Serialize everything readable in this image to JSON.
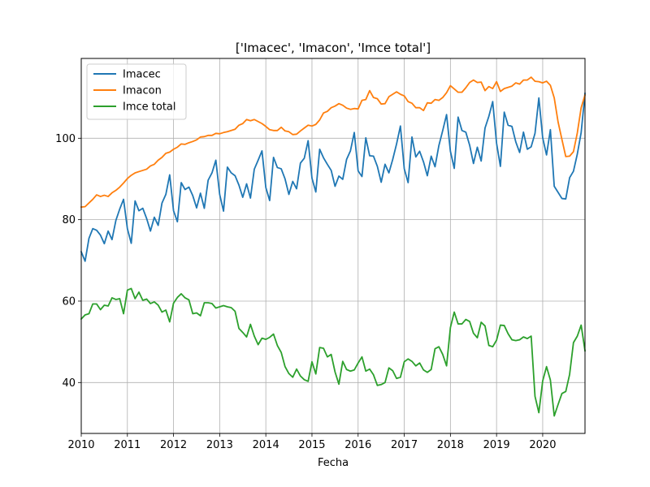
{
  "chart_data": {
    "type": "line",
    "title": "['Imacec', 'Imacon', 'Imce total']",
    "xlabel": "Fecha",
    "ylabel": "",
    "x_start": "2010-01",
    "x_end": "2020-12",
    "x_tick_labels": [
      "2010",
      "2011",
      "2012",
      "2013",
      "2014",
      "2015",
      "2016",
      "2017",
      "2018",
      "2019",
      "2020"
    ],
    "y_ticks": [
      40,
      60,
      80,
      100
    ],
    "xlim": [
      "2010-01",
      "2020-12"
    ],
    "ylim": [
      27.5,
      119.6
    ],
    "grid": true,
    "legend_position": "upper-left",
    "series": [
      {
        "name": "Imacec",
        "color": "#1f77b4",
        "values": [
          72.1,
          69.8,
          75.4,
          77.8,
          77.4,
          76.2,
          74.1,
          77.2,
          75.1,
          79.8,
          82.6,
          85.0,
          77.8,
          74.2,
          84.6,
          82.2,
          82.8,
          80.3,
          77.2,
          80.6,
          78.6,
          84.1,
          86.2,
          91.0,
          82.2,
          79.5,
          89.1,
          87.4,
          88.0,
          85.9,
          82.9,
          86.5,
          82.8,
          89.7,
          91.5,
          94.6,
          86.2,
          82.1,
          92.9,
          91.5,
          90.8,
          88.5,
          85.5,
          88.8,
          85.3,
          92.4,
          94.6,
          96.9,
          87.9,
          84.7,
          95.3,
          92.8,
          92.5,
          90.0,
          86.2,
          89.4,
          87.6,
          93.9,
          95.1,
          99.4,
          90.2,
          86.8,
          97.3,
          95.2,
          93.6,
          92.1,
          88.2,
          90.7,
          89.9,
          94.8,
          96.9,
          101.4,
          92.0,
          90.6,
          100.1,
          95.7,
          95.6,
          93.1,
          89.2,
          93.6,
          91.5,
          94.8,
          98.6,
          103.0,
          92.5,
          89.1,
          100.3,
          95.4,
          96.8,
          94.2,
          90.8,
          95.6,
          93.0,
          98.2,
          101.9,
          105.8,
          96.8,
          92.6,
          105.2,
          101.9,
          101.5,
          98.3,
          93.8,
          97.8,
          94.4,
          102.5,
          105.4,
          109.0,
          98.8,
          93.1,
          106.4,
          103.2,
          102.9,
          99.1,
          96.5,
          101.5,
          97.3,
          97.9,
          101.2,
          109.9,
          100.1,
          95.9,
          102.1,
          88.2,
          86.7,
          85.2,
          85.1,
          90.3,
          91.9,
          96.1,
          101.4,
          111.0
        ]
      },
      {
        "name": "Imacon",
        "color": "#ff7f0e",
        "values": [
          83.1,
          83.2,
          84.1,
          85.0,
          86.1,
          85.7,
          86.0,
          85.7,
          86.6,
          87.2,
          88.0,
          89.0,
          90.1,
          90.9,
          91.5,
          91.8,
          92.1,
          92.4,
          93.2,
          93.6,
          94.6,
          95.3,
          96.3,
          96.6,
          97.3,
          97.8,
          98.6,
          98.5,
          98.9,
          99.2,
          99.6,
          100.3,
          100.4,
          100.7,
          100.7,
          101.2,
          101.1,
          101.4,
          101.6,
          101.9,
          102.2,
          103.2,
          103.6,
          104.6,
          104.3,
          104.6,
          104.1,
          103.6,
          102.9,
          102.1,
          101.9,
          101.9,
          102.7,
          101.8,
          101.6,
          100.9,
          101.0,
          101.8,
          102.5,
          103.2,
          103.0,
          103.4,
          104.5,
          106.2,
          106.6,
          107.5,
          107.9,
          108.5,
          108.1,
          107.4,
          107.1,
          107.3,
          107.2,
          109.3,
          109.5,
          111.7,
          110.0,
          109.7,
          108.4,
          108.5,
          110.2,
          110.8,
          111.4,
          110.8,
          110.4,
          109.0,
          108.6,
          107.5,
          107.5,
          106.8,
          108.7,
          108.6,
          109.5,
          109.3,
          110.0,
          111.2,
          112.9,
          112.1,
          111.3,
          111.3,
          112.4,
          113.7,
          114.3,
          113.7,
          113.8,
          111.7,
          112.7,
          112.2,
          113.9,
          111.5,
          112.2,
          112.5,
          112.8,
          113.6,
          113.3,
          114.3,
          114.3,
          115.0,
          114.0,
          113.9,
          113.6,
          114.0,
          113.0,
          109.9,
          104.0,
          99.7,
          95.5,
          95.6,
          96.7,
          101.3,
          107.5,
          110.6
        ]
      },
      {
        "name": "Imce total",
        "color": "#2ca02c",
        "values": [
          55.6,
          56.6,
          56.9,
          59.3,
          59.3,
          57.9,
          59.0,
          58.8,
          60.8,
          60.4,
          60.6,
          56.9,
          62.7,
          63.1,
          60.6,
          62.2,
          60.2,
          60.5,
          59.4,
          59.8,
          59.0,
          57.3,
          57.8,
          54.9,
          59.5,
          60.9,
          61.8,
          60.8,
          60.3,
          56.9,
          57.1,
          56.4,
          59.6,
          59.6,
          59.4,
          58.3,
          58.6,
          58.9,
          58.6,
          58.4,
          57.5,
          53.3,
          52.3,
          51.2,
          54.3,
          51.4,
          49.3,
          50.9,
          50.6,
          51.1,
          51.9,
          49.1,
          47.4,
          43.9,
          42.2,
          41.3,
          43.3,
          41.6,
          40.7,
          40.3,
          45.1,
          42.1,
          48.6,
          48.4,
          46.3,
          46.9,
          42.6,
          39.6,
          45.2,
          43.2,
          42.8,
          43.1,
          44.8,
          46.3,
          42.8,
          43.3,
          41.9,
          39.3,
          39.5,
          40.0,
          43.6,
          42.9,
          41.0,
          41.3,
          45.1,
          45.8,
          45.2,
          44.1,
          44.8,
          43.1,
          42.5,
          43.2,
          48.3,
          48.8,
          46.9,
          44.1,
          53.5,
          57.3,
          54.4,
          54.4,
          55.5,
          55.0,
          52.1,
          51.0,
          54.8,
          53.9,
          49.1,
          48.8,
          50.4,
          54.1,
          54.0,
          52.0,
          50.5,
          50.3,
          50.5,
          51.2,
          50.8,
          51.4,
          36.6,
          32.6,
          40.4,
          43.9,
          40.6,
          31.8,
          34.6,
          37.3,
          37.8,
          42.0,
          49.8,
          51.4,
          54.1,
          47.8
        ]
      }
    ]
  }
}
